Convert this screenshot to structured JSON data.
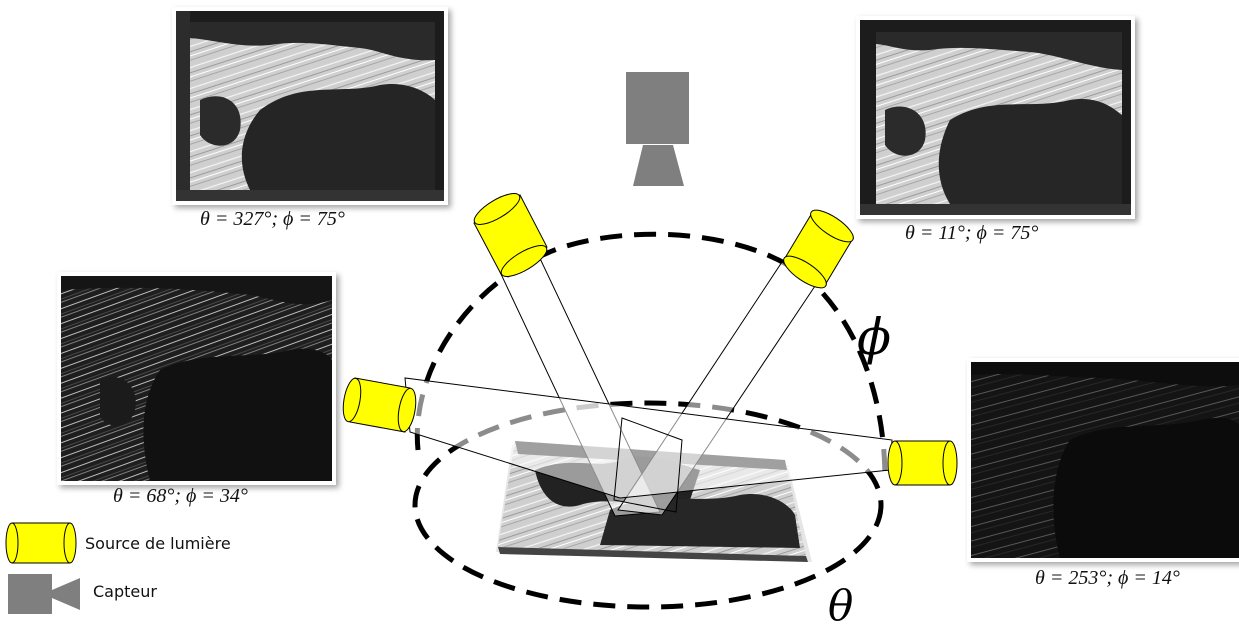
{
  "captions": {
    "top_left": "θ = 327°; ϕ = 75°",
    "top_right": "θ = 11°; ϕ = 75°",
    "middle_left": "θ = 68°; ϕ = 34°",
    "bottom_right": "θ = 253°; ϕ = 14°"
  },
  "symbols": {
    "phi": "ϕ",
    "theta": "θ"
  },
  "legend": {
    "light_source": "Source de lumière",
    "sensor": "Capteur"
  },
  "colors": {
    "light_source": "#ffff00",
    "sensor": "#7f7f7f",
    "dashed_line": "#000000"
  },
  "icons": {
    "light_source": "yellow-cylinder-icon",
    "sensor": "gray-camera-icon"
  }
}
